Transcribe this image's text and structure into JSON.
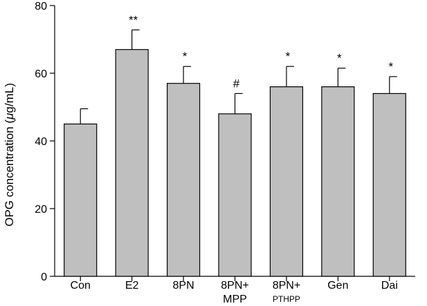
{
  "chart_data": {
    "type": "bar",
    "categories": [
      {
        "line1": "Con",
        "line2": ""
      },
      {
        "line1": "E2",
        "line2": ""
      },
      {
        "line1": "8PN",
        "line2": ""
      },
      {
        "line1": "8PN+",
        "line2": "MPP"
      },
      {
        "line1": "8PN+",
        "line2": "PTHPP"
      },
      {
        "line1": "Gen",
        "line2": ""
      },
      {
        "line1": "Dai",
        "line2": ""
      }
    ],
    "values": [
      45,
      67,
      57,
      48,
      56,
      56,
      54
    ],
    "errors": [
      4.5,
      5.8,
      5.0,
      6.0,
      6.0,
      5.5,
      5.0
    ],
    "annotations": [
      "",
      "**",
      "*",
      "#",
      "*",
      "*",
      "*"
    ],
    "ylabel_prefix": "OPG concentration (",
    "ylabel_mu": "μ",
    "ylabel_suffix": "g/mL)",
    "ylim": [
      0,
      80
    ],
    "yticks": [
      0,
      20,
      40,
      60,
      80
    ],
    "grid": false,
    "colors": {
      "bar": "#bfbfbf",
      "edge": "#000000"
    }
  }
}
